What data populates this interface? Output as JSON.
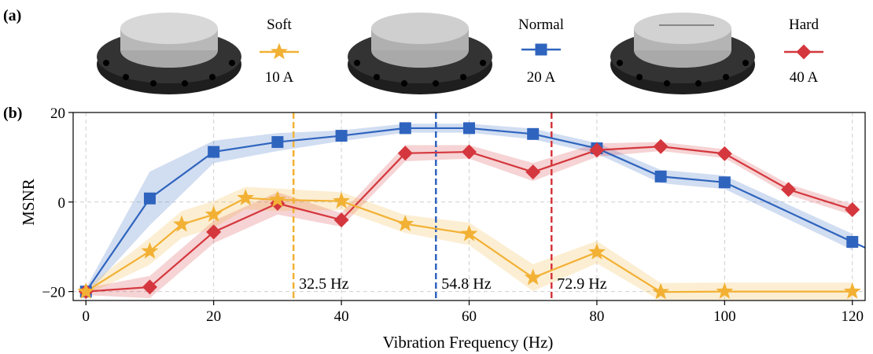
{
  "panels": {
    "a": "(a)",
    "b": "(b)"
  },
  "legend": [
    {
      "label": "Soft",
      "current": "10 A",
      "color": "#f2b134",
      "marker": "star"
    },
    {
      "label": "Normal",
      "current": "20 A",
      "color": "#2f64be",
      "marker": "square"
    },
    {
      "label": "Hard",
      "current": "40 A",
      "color": "#d4373d",
      "marker": "diamond"
    }
  ],
  "chart_data": {
    "type": "line",
    "xlabel": "Vibration Frequency (Hz)",
    "ylabel": "MSNR",
    "xlim": [
      -2,
      122
    ],
    "ylim": [
      -22,
      20
    ],
    "xticks": [
      0,
      20,
      40,
      60,
      80,
      100,
      120
    ],
    "yticks": [
      -20,
      0,
      20
    ],
    "ytick_labels": [
      "−20",
      "0",
      "20"
    ],
    "grid": true,
    "series": [
      {
        "name": "Normal",
        "color": "#2f64be",
        "marker": "square",
        "x": [
          0,
          10,
          20,
          30,
          40,
          50,
          60,
          70,
          80,
          90,
          100,
          120
        ],
        "y": [
          -20,
          0.8,
          11.2,
          13.4,
          14.8,
          16.5,
          16.5,
          15.2,
          12.0,
          5.7,
          4.4,
          -8.9
        ],
        "band": [
          0.8,
          6.0,
          2.5,
          2.0,
          1.2,
          1.0,
          1.0,
          1.2,
          1.2,
          1.5,
          1.5,
          1.8
        ],
        "line_extends_to": [
          122,
          -10.2
        ]
      },
      {
        "name": "Hard",
        "color": "#d4373d",
        "marker": "diamond",
        "x": [
          0,
          10,
          20,
          30,
          40,
          50,
          60,
          70,
          80,
          90,
          100,
          110,
          120
        ],
        "y": [
          -20,
          -19,
          -6.7,
          -0.3,
          -4.0,
          10.9,
          11.2,
          6.7,
          11.6,
          12.4,
          10.8,
          2.8,
          -1.7
        ],
        "band": [
          0.8,
          2.5,
          2.5,
          2.5,
          1.5,
          1.8,
          1.5,
          2.0,
          1.5,
          1.0,
          1.0,
          1.2,
          1.2
        ]
      },
      {
        "name": "Soft",
        "color": "#f2b134",
        "marker": "star",
        "x": [
          0,
          10,
          15,
          20,
          25,
          30,
          40,
          50,
          60,
          70,
          80,
          90,
          100,
          120
        ],
        "y": [
          -20,
          -11,
          -5,
          -2.8,
          0.9,
          0.5,
          0.2,
          -4.9,
          -7.1,
          -16.9,
          -11.2,
          -20.1,
          -20,
          -20
        ],
        "band": [
          0.8,
          3.0,
          3.0,
          3.0,
          2.5,
          2.5,
          2.0,
          2.0,
          2.5,
          3.0,
          2.5,
          2.0,
          2.0,
          2.0
        ]
      }
    ],
    "vlines": [
      {
        "x": 32.5,
        "label": "32.5 Hz",
        "color": "#f2b134"
      },
      {
        "x": 54.8,
        "label": "54.8 Hz",
        "color": "#2f64be"
      },
      {
        "x": 72.9,
        "label": "72.9 Hz",
        "color": "#d4373d"
      }
    ]
  }
}
